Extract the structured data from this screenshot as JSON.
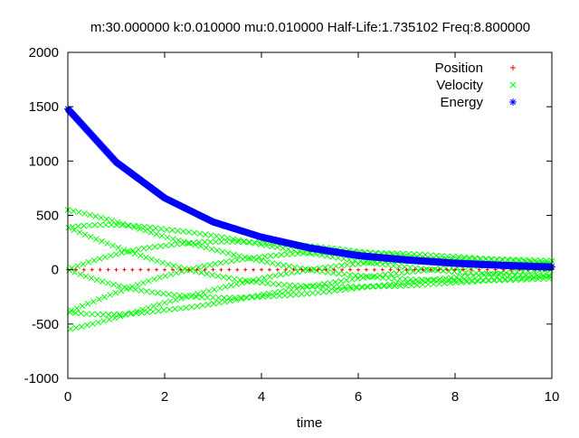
{
  "chart_data": {
    "type": "scatter",
    "title": "m:30.000000 k:0.010000 mu:0.010000 Half-Life:1.735102 Freq:8.800000",
    "xlabel": "time",
    "ylabel": "",
    "xlim": [
      0,
      10
    ],
    "ylim": [
      -1000,
      2000
    ],
    "xticks": [
      "0",
      "2",
      "4",
      "6",
      "8",
      "10"
    ],
    "yticks": [
      "-1000",
      "-500",
      "0",
      "500",
      "1000",
      "1500",
      "2000"
    ],
    "grid": false,
    "legend_position": "top-right",
    "damping": {
      "half_life": 1.735102,
      "freq": 8.8
    },
    "series": [
      {
        "name": "Position",
        "marker": "+",
        "color": "#ff0000",
        "amplitude_envelope": [
          [
            0,
            0.6
          ],
          [
            10,
            0.1
          ]
        ]
      },
      {
        "name": "Velocity",
        "marker": "x",
        "color": "#00ff00",
        "amplitude_envelope": [
          [
            0,
            550
          ],
          [
            2,
            375
          ],
          [
            4,
            260
          ],
          [
            6,
            175
          ],
          [
            8,
            120
          ],
          [
            10,
            80
          ]
        ]
      },
      {
        "name": "Energy",
        "marker": "*",
        "color": "#0000ff",
        "points": [
          [
            0,
            1480
          ],
          [
            1,
            990
          ],
          [
            2,
            660
          ],
          [
            3,
            440
          ],
          [
            4,
            300
          ],
          [
            5,
            200
          ],
          [
            6,
            130
          ],
          [
            7,
            90
          ],
          [
            8,
            60
          ],
          [
            9,
            40
          ],
          [
            10,
            25
          ]
        ]
      }
    ]
  }
}
